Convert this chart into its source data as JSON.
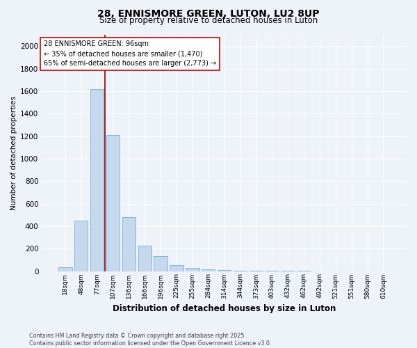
{
  "title1": "28, ENNISMORE GREEN, LUTON, LU2 8UP",
  "title2": "Size of property relative to detached houses in Luton",
  "xlabel": "Distribution of detached houses by size in Luton",
  "ylabel": "Number of detached properties",
  "categories": [
    "18sqm",
    "48sqm",
    "77sqm",
    "107sqm",
    "136sqm",
    "166sqm",
    "196sqm",
    "225sqm",
    "255sqm",
    "284sqm",
    "314sqm",
    "344sqm",
    "373sqm",
    "403sqm",
    "432sqm",
    "462sqm",
    "492sqm",
    "521sqm",
    "551sqm",
    "580sqm",
    "610sqm"
  ],
  "values": [
    35,
    450,
    1620,
    1210,
    480,
    225,
    130,
    50,
    28,
    16,
    10,
    5,
    3,
    2,
    1,
    1,
    0,
    0,
    0,
    0,
    0
  ],
  "bar_color": "#c5d8ed",
  "bar_edgecolor": "#7aafd4",
  "vline_x_index": 2.5,
  "vline_color": "#8b0000",
  "annotation_text": "28 ENNISMORE GREEN: 96sqm\n← 35% of detached houses are smaller (1,470)\n65% of semi-detached houses are larger (2,773) →",
  "annotation_box_edgecolor": "#cc0000",
  "annotation_box_facecolor": "white",
  "ylim": [
    0,
    2100
  ],
  "yticks": [
    0,
    200,
    400,
    600,
    800,
    1000,
    1200,
    1400,
    1600,
    1800,
    2000
  ],
  "footnote": "Contains HM Land Registry data © Crown copyright and database right 2025.\nContains public sector information licensed under the Open Government Licence v3.0.",
  "bg_color": "#eef2f9",
  "grid_color": "white"
}
